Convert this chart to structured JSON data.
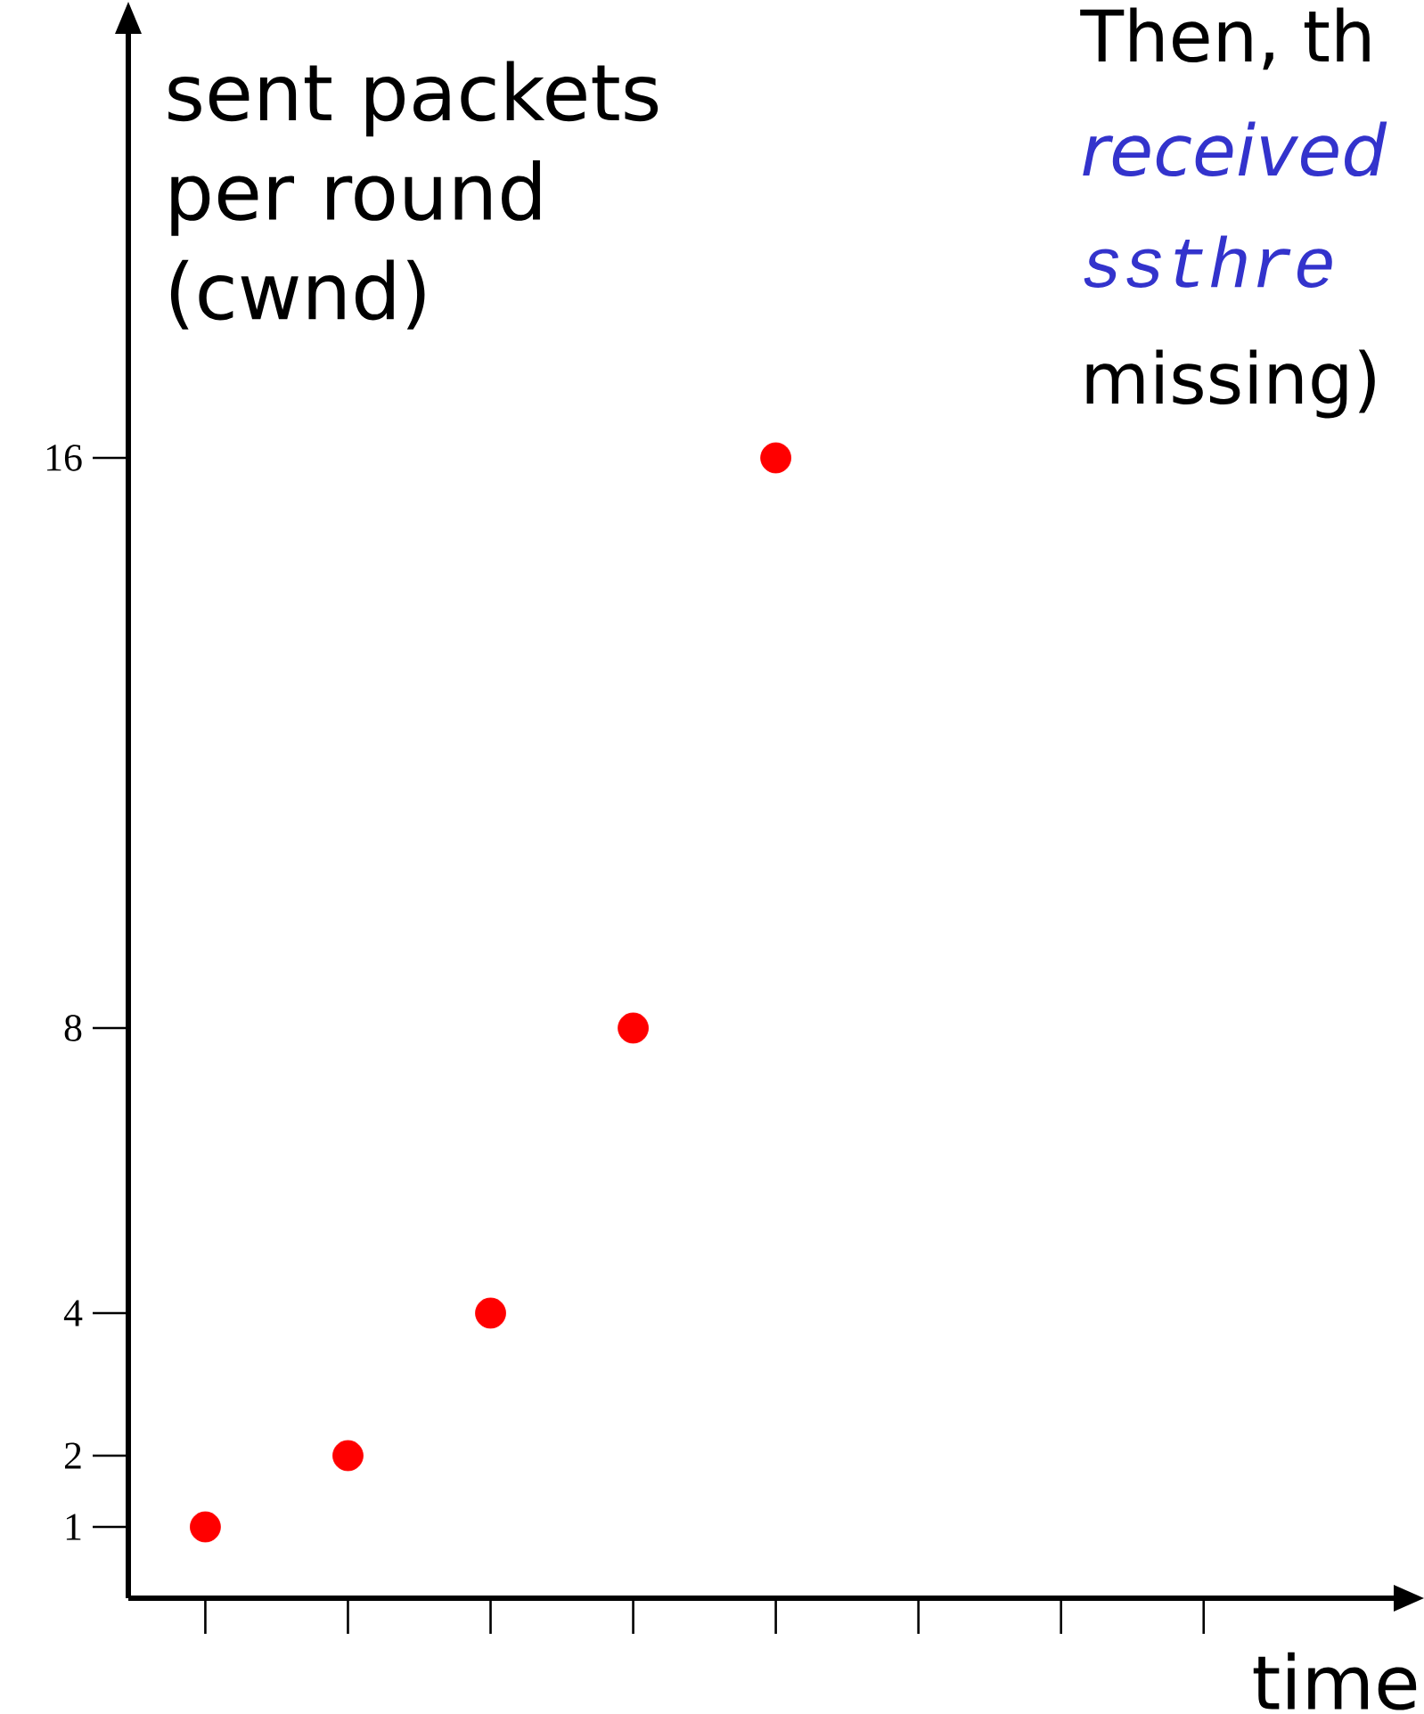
{
  "chart_data": {
    "type": "scatter",
    "xlabel": "time",
    "ylabel": "sent packets per round (cwnd)",
    "categories": [
      null,
      null,
      null,
      null,
      null,
      null,
      null,
      null
    ],
    "values": [
      1,
      2,
      4,
      8,
      16,
      null,
      null,
      null
    ],
    "color": "#ff0000",
    "marker": "circle",
    "ylim": [
      0,
      22
    ],
    "yticks": [
      1,
      2,
      4,
      8,
      16
    ],
    "tick_labels": "y",
    "annotations": [
      "Then, th",
      "received",
      "ssthre",
      "missing)"
    ]
  }
}
